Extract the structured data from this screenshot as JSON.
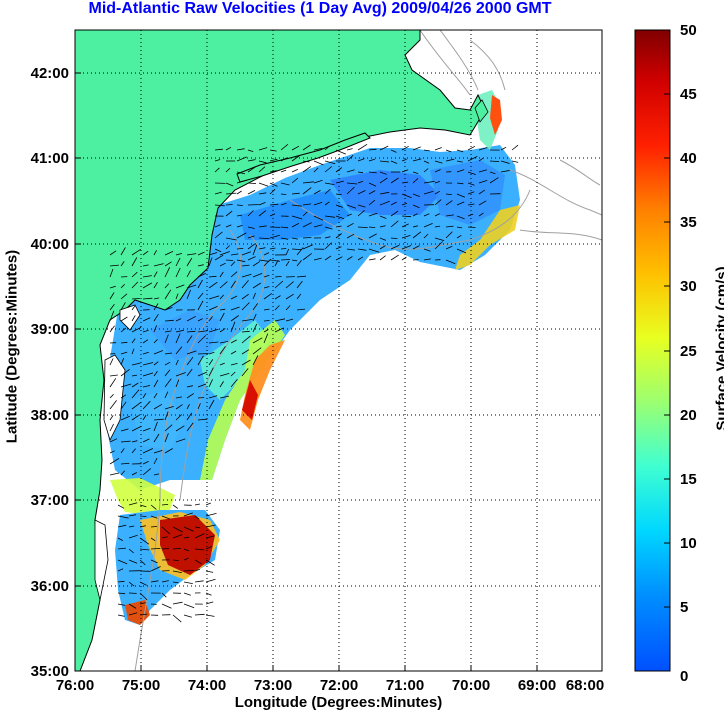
{
  "title": "Mid-Atlantic Raw Velocities (1 Day Avg) 2009/04/26 2000 GMT",
  "title_color": "#0000ff",
  "colors": {
    "land": "#4cf0a0",
    "coastline": "#000000",
    "bathymetry": "#a0a0a0",
    "vectors": "#000000",
    "grid": "#000000"
  },
  "axes": {
    "xlabel": "Longitude (Degrees:Minutes)",
    "ylabel": "Latitude (Degrees:Minutes)",
    "xticks": [
      "76:00",
      "75:00",
      "74:00",
      "73:00",
      "72:00",
      "71:00",
      "70:00",
      "69:00",
      "68:00"
    ],
    "yticks": [
      "35:00",
      "36:00",
      "37:00",
      "38:00",
      "39:00",
      "40:00",
      "41:00",
      "42:00"
    ],
    "xlim": [
      -76,
      -68
    ],
    "ylim": [
      35,
      42.5
    ],
    "grid": "dotted"
  },
  "colorbar": {
    "label": "Surface Velocity (cm/s)",
    "ticks": [
      "0",
      "5",
      "10",
      "15",
      "20",
      "25",
      "30",
      "35",
      "40",
      "45",
      "50"
    ],
    "range": [
      0,
      50
    ],
    "colormap": "jet"
  }
}
